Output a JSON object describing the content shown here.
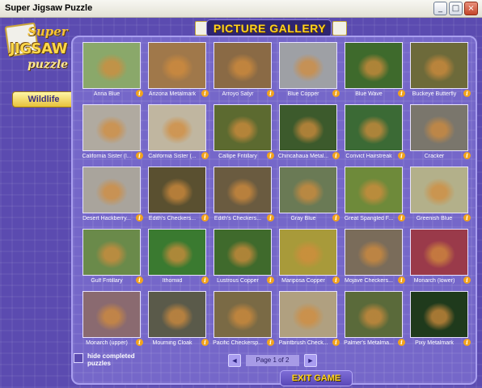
{
  "window": {
    "title": "Super Jigsaw Puzzle",
    "minimize": "_",
    "maximize": "□",
    "close": "×"
  },
  "logo": {
    "super": "Super",
    "jigsaw": "JIGSAW",
    "puzzle": "puzzle"
  },
  "category": {
    "label": "Wildlife"
  },
  "header": {
    "title": "PICTURE GALLERY"
  },
  "gallery": [
    [
      {
        "label": "Anna Blue",
        "bg": "#8aa86a"
      },
      {
        "label": "Arizona Metalmark",
        "bg": "#a0784a"
      },
      {
        "label": "Arroyo Satyr",
        "bg": "#8a6a45"
      },
      {
        "label": "Blue Copper",
        "bg": "#9ea0a5"
      },
      {
        "label": "Blue Wave",
        "bg": "#3e6a2c"
      },
      {
        "label": "Buckeye Butterfly",
        "bg": "#6d6a3a"
      }
    ],
    [
      {
        "label": "California Sister (l...",
        "bg": "#b0aaa0"
      },
      {
        "label": "California Sister (...",
        "bg": "#c0b6a0"
      },
      {
        "label": "Callipe Fritillary",
        "bg": "#5c6a30"
      },
      {
        "label": "Chiricahaua Metal...",
        "bg": "#3c5a2c"
      },
      {
        "label": "Convict Hairstreak",
        "bg": "#3b6a35"
      },
      {
        "label": "Cracker",
        "bg": "#7a766c"
      }
    ],
    [
      {
        "label": "Desert Hackberry...",
        "bg": "#a9a49c"
      },
      {
        "label": "Edith's Checkers...",
        "bg": "#5a5030"
      },
      {
        "label": "Edith's Checkers...",
        "bg": "#6a5b40"
      },
      {
        "label": "Gray Blue",
        "bg": "#6a7a55"
      },
      {
        "label": "Great Spangled F...",
        "bg": "#6e8a3a"
      },
      {
        "label": "Greenish Blue",
        "bg": "#b3b08a"
      }
    ],
    [
      {
        "label": "Gulf Fritillary",
        "bg": "#6a8a4a"
      },
      {
        "label": "Ithomiid",
        "bg": "#3a7a30"
      },
      {
        "label": "Lustrous Copper",
        "bg": "#3f6a2c"
      },
      {
        "label": "Mariposa Copper",
        "bg": "#a89a3a"
      },
      {
        "label": "Mojave Checkers...",
        "bg": "#7a6c5a"
      },
      {
        "label": "Monarch (lower)",
        "bg": "#9a3a4a"
      }
    ],
    [
      {
        "label": "Monarch (upper)",
        "bg": "#8a6a70"
      },
      {
        "label": "Mourning Cloak",
        "bg": "#5a5a4a"
      },
      {
        "label": "Pacific Checkersp...",
        "bg": "#7a6a45"
      },
      {
        "label": "Paintbrush Check...",
        "bg": "#b0a080"
      },
      {
        "label": "Palmer's Metalma...",
        "bg": "#5a6a3a"
      },
      {
        "label": "Pixy Metalmark",
        "bg": "#1f3a1c"
      }
    ]
  ],
  "info_glyph": "i",
  "hide_completed": {
    "label": "hide completed puzzles",
    "checked": false
  },
  "pager": {
    "prev": "◄",
    "text": "Page 1 of 2",
    "next": "►"
  },
  "exit": {
    "label": "EXIT GAME"
  }
}
